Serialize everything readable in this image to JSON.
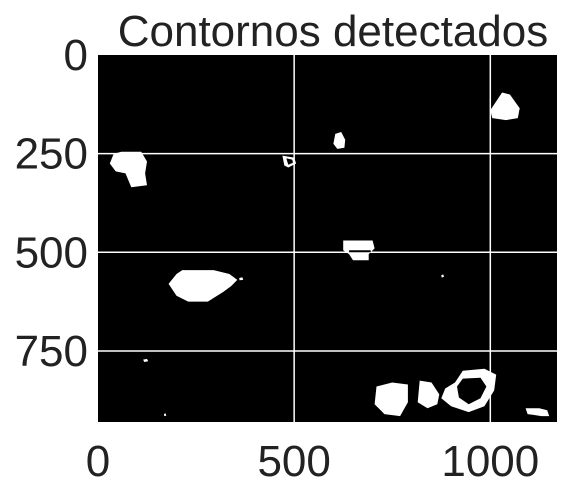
{
  "title": "Contornos detectados",
  "image": {
    "width": 1170,
    "height": 930,
    "background": "#000000",
    "foreground": "#ffffff"
  },
  "axes": {
    "x_ticks": [
      {
        "value": 0,
        "label": "0"
      },
      {
        "value": 500,
        "label": "500"
      },
      {
        "value": 1000,
        "label": "1000"
      }
    ],
    "y_ticks": [
      {
        "value": 0,
        "label": "0"
      },
      {
        "value": 250,
        "label": "250"
      },
      {
        "value": 500,
        "label": "500"
      },
      {
        "value": 750,
        "label": "750"
      }
    ],
    "grid": true,
    "text_color": "#222222"
  },
  "objects": [
    {
      "id": "blob-1",
      "points": [
        [
          40,
          250
        ],
        [
          60,
          245
        ],
        [
          110,
          245
        ],
        [
          125,
          270
        ],
        [
          120,
          300
        ],
        [
          125,
          330
        ],
        [
          85,
          335
        ],
        [
          70,
          300
        ],
        [
          45,
          295
        ],
        [
          30,
          275
        ]
      ]
    },
    {
      "id": "blob-2",
      "points": [
        [
          470,
          255
        ],
        [
          500,
          260
        ],
        [
          505,
          275
        ],
        [
          485,
          285
        ],
        [
          475,
          280
        ]
      ],
      "hole": [
        [
          480,
          262
        ],
        [
          495,
          265
        ],
        [
          497,
          273
        ],
        [
          485,
          278
        ]
      ]
    },
    {
      "id": "blob-3",
      "points": [
        [
          605,
          200
        ],
        [
          620,
          195
        ],
        [
          630,
          215
        ],
        [
          628,
          235
        ],
        [
          610,
          238
        ],
        [
          600,
          225
        ]
      ]
    },
    {
      "id": "blob-4",
      "points": [
        [
          1000,
          140
        ],
        [
          1030,
          95
        ],
        [
          1050,
          100
        ],
        [
          1075,
          135
        ],
        [
          1070,
          160
        ],
        [
          1040,
          165
        ],
        [
          1005,
          160
        ]
      ]
    },
    {
      "id": "blob-5",
      "points": [
        [
          625,
          470
        ],
        [
          700,
          470
        ],
        [
          705,
          490
        ],
        [
          690,
          505
        ],
        [
          690,
          520
        ],
        [
          650,
          520
        ],
        [
          640,
          505
        ],
        [
          625,
          495
        ]
      ],
      "hole": [
        [
          640,
          495
        ],
        [
          695,
          495
        ],
        [
          695,
          500
        ],
        [
          640,
          500
        ]
      ]
    },
    {
      "id": "blob-6",
      "points": [
        [
          215,
          545
        ],
        [
          295,
          545
        ],
        [
          335,
          555
        ],
        [
          355,
          570
        ],
        [
          340,
          585
        ],
        [
          320,
          600
        ],
        [
          280,
          625
        ],
        [
          230,
          625
        ],
        [
          200,
          610
        ],
        [
          180,
          580
        ],
        [
          200,
          555
        ]
      ]
    },
    {
      "id": "blob-7",
      "points": [
        [
          710,
          840
        ],
        [
          750,
          830
        ],
        [
          790,
          835
        ],
        [
          790,
          880
        ],
        [
          770,
          915
        ],
        [
          730,
          910
        ],
        [
          705,
          885
        ]
      ]
    },
    {
      "id": "blob-8",
      "points": [
        [
          820,
          825
        ],
        [
          850,
          830
        ],
        [
          870,
          860
        ],
        [
          865,
          885
        ],
        [
          840,
          895
        ],
        [
          815,
          880
        ]
      ]
    },
    {
      "id": "blob-9",
      "points": [
        [
          910,
          830
        ],
        [
          930,
          800
        ],
        [
          985,
          795
        ],
        [
          1015,
          810
        ],
        [
          1010,
          850
        ],
        [
          985,
          890
        ],
        [
          945,
          905
        ],
        [
          900,
          890
        ],
        [
          875,
          870
        ],
        [
          885,
          845
        ]
      ],
      "hole": [
        [
          930,
          820
        ],
        [
          975,
          818
        ],
        [
          990,
          840
        ],
        [
          975,
          870
        ],
        [
          945,
          885
        ],
        [
          920,
          868
        ],
        [
          915,
          840
        ]
      ]
    },
    {
      "id": "blob-10",
      "points": [
        [
          1090,
          895
        ],
        [
          1125,
          895
        ],
        [
          1145,
          900
        ],
        [
          1150,
          915
        ],
        [
          1130,
          915
        ],
        [
          1110,
          912
        ],
        [
          1095,
          910
        ]
      ]
    },
    {
      "id": "blob-11",
      "points": [
        [
          875,
          558
        ],
        [
          880,
          556
        ],
        [
          882,
          562
        ],
        [
          876,
          564
        ]
      ]
    },
    {
      "id": "blob-12",
      "points": [
        [
          115,
          772
        ],
        [
          125,
          770
        ],
        [
          128,
          776
        ],
        [
          118,
          778
        ]
      ]
    },
    {
      "id": "blob-13",
      "points": [
        [
          168,
          910
        ],
        [
          172,
          908
        ],
        [
          174,
          914
        ],
        [
          169,
          915
        ]
      ]
    },
    {
      "id": "blob-14",
      "points": [
        [
          360,
          565
        ],
        [
          368,
          563
        ],
        [
          370,
          570
        ],
        [
          361,
          571
        ]
      ]
    }
  ]
}
